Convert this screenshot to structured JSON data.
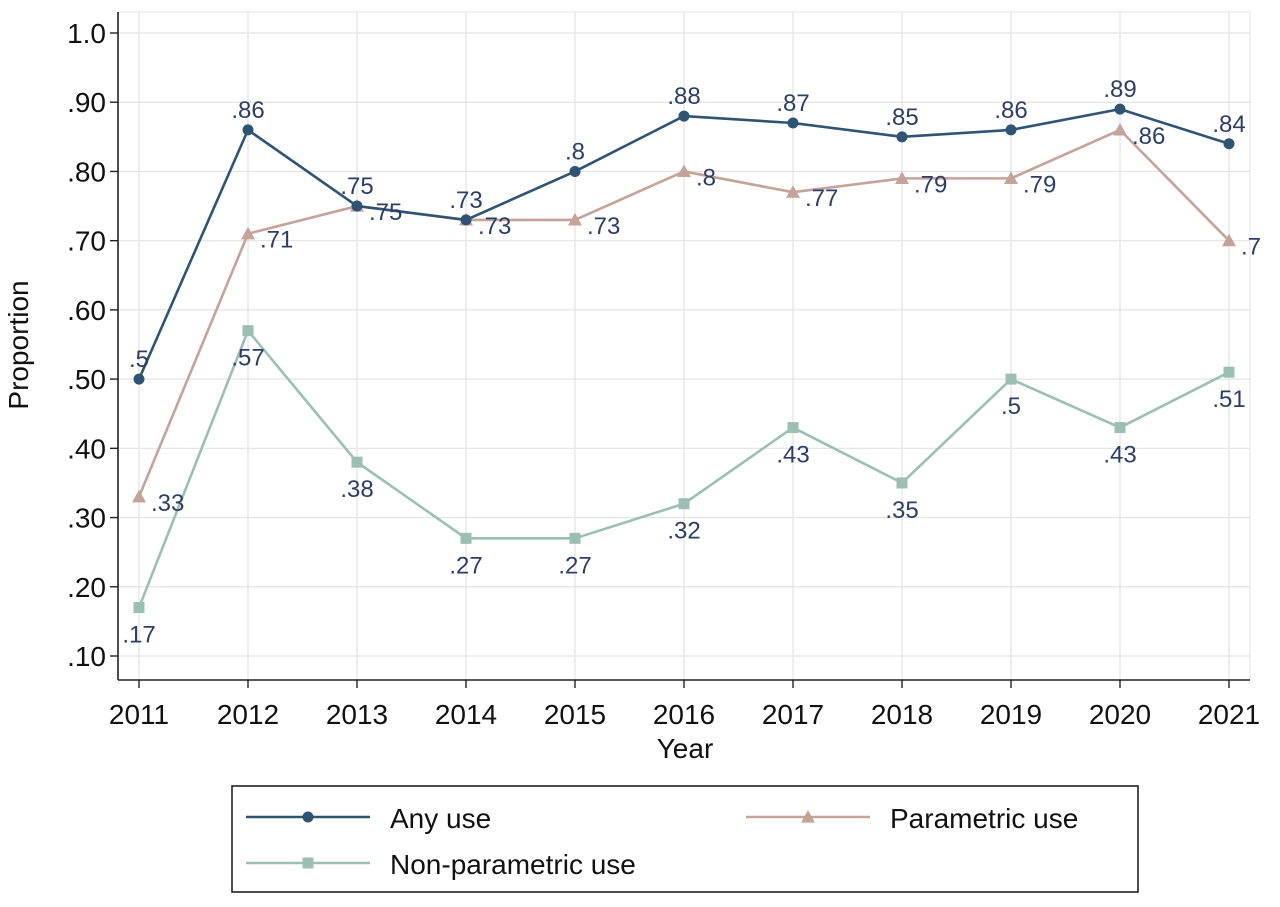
{
  "chart_data": {
    "type": "line",
    "title": "",
    "xlabel": "Year",
    "ylabel": "Proportion",
    "categories": [
      "2011",
      "2012",
      "2013",
      "2014",
      "2015",
      "2016",
      "2017",
      "2018",
      "2019",
      "2020",
      "2021"
    ],
    "ylim": [
      0.1,
      1.0
    ],
    "yticks": [
      {
        "value": 1.0,
        "label": "1.0"
      },
      {
        "value": 0.9,
        "label": ".90"
      },
      {
        "value": 0.8,
        "label": ".80"
      },
      {
        "value": 0.7,
        "label": ".70"
      },
      {
        "value": 0.6,
        "label": ".60"
      },
      {
        "value": 0.5,
        "label": ".50"
      },
      {
        "value": 0.4,
        "label": ".40"
      },
      {
        "value": 0.3,
        "label": ".30"
      },
      {
        "value": 0.2,
        "label": ".20"
      },
      {
        "value": 0.1,
        "label": ".10"
      }
    ],
    "grid": true,
    "legend_position": "bottom",
    "label_color": "#2c3e66",
    "series": [
      {
        "name": "Any use",
        "marker": "circle",
        "color": "#2f5373",
        "label_side": "above",
        "values": [
          0.5,
          0.86,
          0.75,
          0.73,
          0.8,
          0.88,
          0.87,
          0.85,
          0.86,
          0.89,
          0.84
        ],
        "labels": [
          ".5",
          ".86",
          ".75",
          ".73",
          ".8",
          ".88",
          ".87",
          ".85",
          ".86",
          ".89",
          ".84"
        ]
      },
      {
        "name": "Parametric use",
        "marker": "triangle",
        "color": "#c4a39a",
        "label_side": "right",
        "values": [
          0.33,
          0.71,
          0.75,
          0.73,
          0.73,
          0.8,
          0.77,
          0.79,
          0.79,
          0.86,
          0.7
        ],
        "labels": [
          ".33",
          ".71",
          ".75",
          ".73",
          ".73",
          ".8",
          ".77",
          ".79",
          ".79",
          ".86",
          ".7"
        ]
      },
      {
        "name": "Non-parametric use",
        "marker": "square",
        "color": "#9bbfb5",
        "label_side": "below",
        "values": [
          0.17,
          0.57,
          0.38,
          0.27,
          0.27,
          0.32,
          0.43,
          0.35,
          0.5,
          0.43,
          0.51
        ],
        "labels": [
          ".17",
          ".57",
          ".38",
          ".27",
          ".27",
          ".32",
          ".43",
          ".35",
          ".5",
          ".43",
          ".51"
        ]
      }
    ]
  }
}
